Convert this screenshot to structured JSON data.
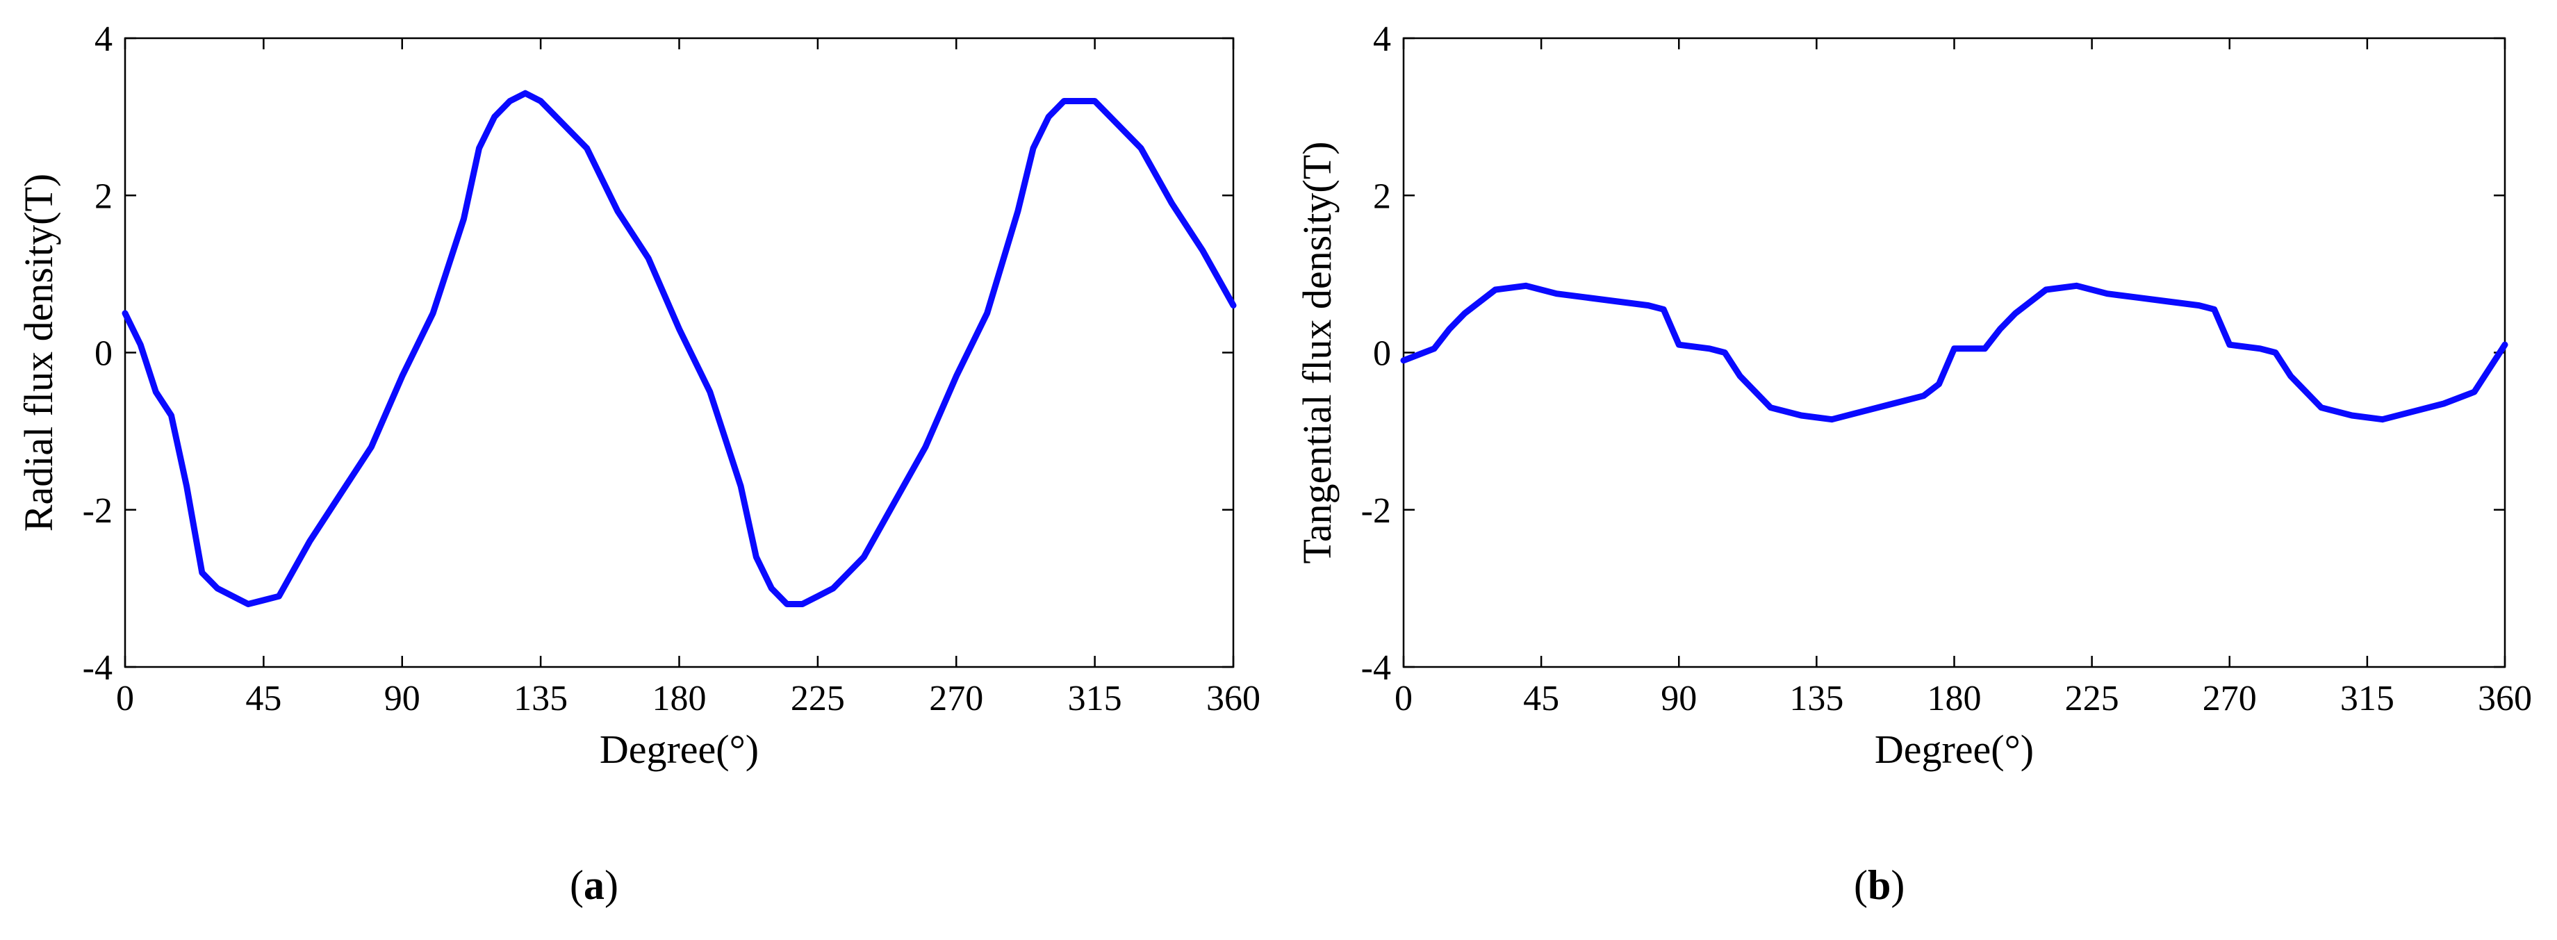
{
  "chart_data": [
    {
      "type": "line",
      "panel_label": "a",
      "xlabel": "Degree(°)",
      "ylabel": "Radial flux density(T)",
      "xlim": [
        0,
        360
      ],
      "ylim": [
        -4,
        4
      ],
      "xticks": [
        0,
        45,
        90,
        135,
        180,
        225,
        270,
        315,
        360
      ],
      "yticks": [
        -4,
        -2,
        0,
        2,
        4
      ],
      "grid": false,
      "series": [
        {
          "color": "#0a0aff",
          "x": [
            0,
            5,
            10,
            15,
            20,
            25,
            30,
            40,
            50,
            60,
            70,
            80,
            90,
            100,
            110,
            115,
            120,
            125,
            130,
            135,
            140,
            150,
            160,
            170,
            180,
            190,
            200,
            205,
            210,
            215,
            220,
            225,
            230,
            240,
            250,
            260,
            270,
            280,
            290,
            295,
            300,
            305,
            310,
            315,
            320,
            330,
            340,
            350,
            360
          ],
          "y": [
            0.5,
            0.1,
            -0.5,
            -0.8,
            -1.7,
            -2.8,
            -3.0,
            -3.2,
            -3.1,
            -2.4,
            -1.8,
            -1.2,
            -0.3,
            0.5,
            1.7,
            2.6,
            3.0,
            3.2,
            3.3,
            3.2,
            3.0,
            2.6,
            1.8,
            1.2,
            0.3,
            -0.5,
            -1.7,
            -2.6,
            -3.0,
            -3.2,
            -3.2,
            -3.1,
            -3.0,
            -2.6,
            -1.9,
            -1.2,
            -0.3,
            0.5,
            1.8,
            2.6,
            3.0,
            3.2,
            3.2,
            3.2,
            3.0,
            2.6,
            1.9,
            1.3,
            0.6
          ]
        }
      ]
    },
    {
      "type": "line",
      "panel_label": "b",
      "xlabel": "Degree(°)",
      "ylabel": "Tangential flux density(T)",
      "xlim": [
        0,
        360
      ],
      "ylim": [
        -4,
        4
      ],
      "xticks": [
        0,
        45,
        90,
        135,
        180,
        225,
        270,
        315,
        360
      ],
      "yticks": [
        -4,
        -2,
        0,
        2,
        4
      ],
      "grid": false,
      "series": [
        {
          "color": "#0a0aff",
          "x": [
            0,
            10,
            15,
            20,
            30,
            40,
            50,
            60,
            70,
            80,
            85,
            90,
            100,
            105,
            110,
            120,
            130,
            140,
            150,
            160,
            170,
            175,
            180,
            190,
            195,
            200,
            210,
            220,
            230,
            240,
            250,
            260,
            265,
            270,
            280,
            285,
            290,
            300,
            310,
            320,
            330,
            340,
            350,
            360
          ],
          "y": [
            -0.1,
            0.05,
            0.3,
            0.5,
            0.8,
            0.85,
            0.75,
            0.7,
            0.65,
            0.6,
            0.55,
            0.1,
            0.05,
            0.0,
            -0.3,
            -0.7,
            -0.8,
            -0.85,
            -0.75,
            -0.65,
            -0.55,
            -0.4,
            0.05,
            0.05,
            0.3,
            0.5,
            0.8,
            0.85,
            0.75,
            0.7,
            0.65,
            0.6,
            0.55,
            0.1,
            0.05,
            0.0,
            -0.3,
            -0.7,
            -0.8,
            -0.85,
            -0.75,
            -0.65,
            -0.5,
            0.1
          ]
        }
      ]
    }
  ]
}
